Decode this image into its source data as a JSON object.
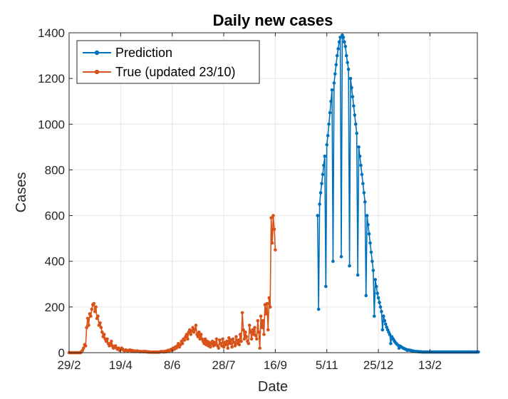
{
  "chart_data": {
    "type": "line",
    "title": "Daily new cases",
    "xlabel": "Date",
    "ylabel": "Cases",
    "ylim": [
      0,
      1400
    ],
    "yticks": [
      "0",
      "200",
      "400",
      "600",
      "800",
      "1000",
      "1200",
      "1400"
    ],
    "xticks": [
      "29/2",
      "19/4",
      "8/6",
      "28/7",
      "16/9",
      "5/11",
      "25/12",
      "13/2"
    ],
    "xlim": [
      "2020-02-29",
      "2021-03-31"
    ],
    "grid": true,
    "legend_position": "top-left",
    "series": [
      {
        "name": "Prediction",
        "color": "#0072BD",
        "start": "2020-10-27",
        "values": [
          600,
          190,
          650,
          700,
          740,
          780,
          820,
          860,
          290,
          910,
          950,
          1000,
          1050,
          1100,
          1150,
          400,
          1180,
          1220,
          1260,
          1300,
          1330,
          1360,
          1380,
          420,
          1390,
          1380,
          1360,
          1340,
          1300,
          1270,
          1240,
          380,
          1200,
          1160,
          1120,
          1080,
          1040,
          1000,
          960,
          340,
          900,
          860,
          820,
          780,
          740,
          700,
          660,
          250,
          600,
          560,
          520,
          480,
          440,
          400,
          360,
          160,
          320,
          290,
          260,
          240,
          220,
          200,
          180,
          100,
          160,
          140,
          125,
          112,
          100,
          90,
          80,
          40,
          70,
          62,
          55,
          48,
          42,
          37,
          33,
          20,
          29,
          26,
          23,
          20,
          18,
          16,
          14,
          10,
          12,
          11,
          10,
          9,
          8,
          7,
          6,
          5,
          5,
          5,
          4,
          4,
          4,
          3,
          3,
          3,
          3,
          3,
          3,
          3,
          3,
          3,
          3,
          3,
          3,
          3,
          3,
          3,
          3,
          3,
          3,
          3,
          3,
          3,
          3,
          3,
          3,
          3,
          3,
          3,
          3,
          3,
          3,
          3,
          3,
          3,
          3,
          3,
          3,
          3,
          3,
          3,
          3,
          3,
          3,
          3,
          3,
          3,
          3,
          3,
          3,
          3,
          3,
          3,
          3,
          3,
          3,
          3,
          3
        ]
      },
      {
        "name": "True (updated 23/10)",
        "color": "#D95319",
        "start": "2020-02-29",
        "values": [
          0,
          0,
          0,
          0,
          0,
          0,
          0,
          0,
          0,
          0,
          0,
          0,
          5,
          10,
          20,
          35,
          30,
          110,
          150,
          120,
          170,
          160,
          190,
          210,
          215,
          180,
          200,
          150,
          160,
          120,
          130,
          110,
          90,
          70,
          80,
          60,
          50,
          60,
          40,
          30,
          40,
          50,
          30,
          20,
          25,
          30,
          20,
          15,
          20,
          10,
          15,
          20,
          15,
          10,
          8,
          12,
          10,
          8,
          10,
          12,
          8,
          10,
          6,
          8,
          5,
          6,
          8,
          5,
          6,
          4,
          5,
          5,
          4,
          6,
          4,
          5,
          3,
          4,
          2,
          3,
          2,
          3,
          2,
          2,
          3,
          2,
          3,
          2,
          3,
          5,
          4,
          5,
          3,
          6,
          4,
          8,
          10,
          6,
          12,
          15,
          10,
          20,
          15,
          25,
          20,
          30,
          40,
          25,
          35,
          50,
          40,
          60,
          55,
          70,
          80,
          60,
          90,
          100,
          80,
          95,
          110,
          90,
          100,
          120,
          80,
          70,
          90,
          60,
          80,
          60,
          50,
          40,
          60,
          35,
          50,
          30,
          45,
          25,
          40,
          50,
          30,
          45,
          35,
          60,
          30,
          20,
          55,
          40,
          30,
          60,
          25,
          45,
          35,
          50,
          20,
          65,
          40,
          55,
          25,
          60,
          45,
          30,
          70,
          40,
          55,
          35,
          80,
          50,
          175,
          100,
          60,
          90,
          70,
          50,
          40,
          120,
          90,
          60,
          100,
          80,
          110,
          75,
          60,
          140,
          90,
          20,
          160,
          110,
          140,
          80,
          210,
          170,
          215,
          100,
          240,
          200,
          590,
          480,
          600,
          540,
          450
        ]
      }
    ]
  }
}
